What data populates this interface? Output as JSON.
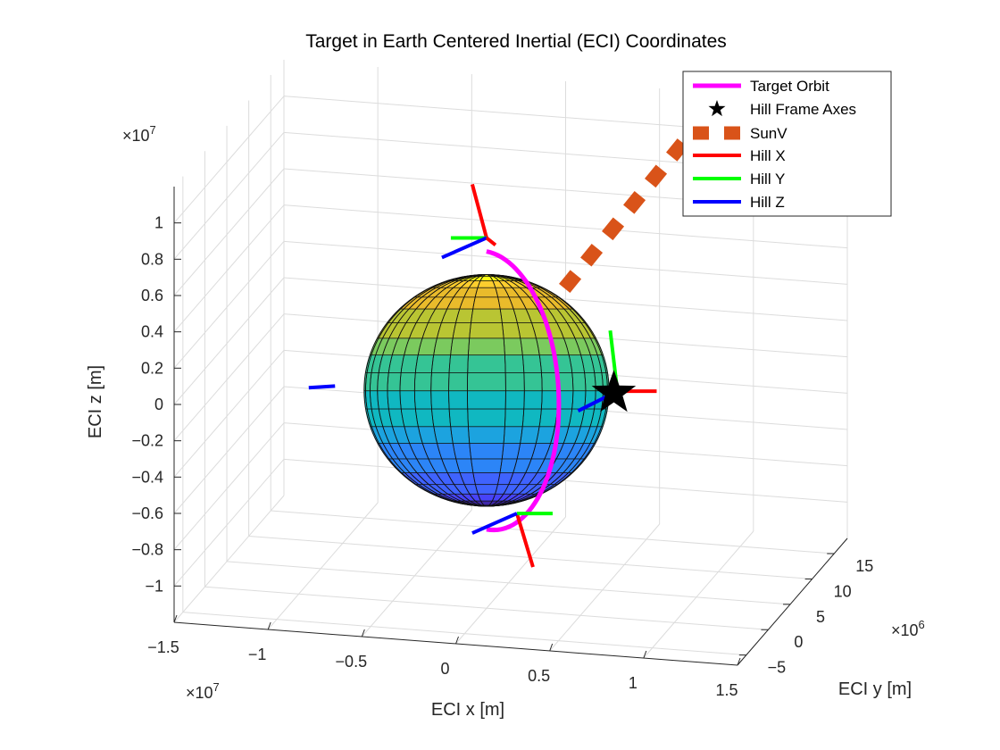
{
  "chart_data": {
    "type": "3d-line",
    "title": "Target in Earth Centered Inertial (ECI) Coordinates",
    "xlabel": "ECI x [m]",
    "ylabel": "ECI y [m]",
    "zlabel": "ECI z [m]",
    "x_exponent_label": "×10",
    "x_exponent_power": "7",
    "y_exponent_label": "×10",
    "y_exponent_power": "6",
    "z_exponent_label": "×10",
    "z_exponent_power": "7",
    "xlim": [
      -15000000,
      15000000
    ],
    "ylim": [
      -7000000,
      18000000
    ],
    "zlim": [
      -12000000,
      12000000
    ],
    "x_ticks": [
      -15000000,
      -10000000,
      -5000000,
      0,
      5000000,
      10000000,
      15000000
    ],
    "x_tick_labels": [
      "−1.5",
      "−1",
      "−0.5",
      "0",
      "0.5",
      "1",
      "1.5"
    ],
    "y_ticks": [
      -5000000,
      0,
      5000000,
      10000000,
      15000000
    ],
    "y_tick_labels": [
      "−5",
      "0",
      "5",
      "10",
      "15"
    ],
    "z_ticks": [
      -10000000,
      -8000000,
      -6000000,
      -4000000,
      -2000000,
      0,
      2000000,
      4000000,
      6000000,
      8000000,
      10000000
    ],
    "z_tick_labels": [
      "−1",
      "−0.8",
      "−0.6",
      "−0.4",
      "−0.2",
      "0",
      "0.2",
      "0.4",
      "0.6",
      "0.8",
      "1"
    ],
    "grid": true,
    "legend_position": "top-right",
    "earth_radius": 6378000,
    "series": [
      {
        "name": "Target Orbit",
        "color": "#ff00ff",
        "style": "solid"
      },
      {
        "name": "Hill Frame Axes",
        "color": "#000000",
        "style": "star"
      },
      {
        "name": "SunV",
        "color": "#d95319",
        "style": "dashed"
      },
      {
        "name": "Hill X",
        "color": "#ff0000",
        "style": "solid"
      },
      {
        "name": "Hill Y",
        "color": "#00ff00",
        "style": "solid"
      },
      {
        "name": "Hill Z",
        "color": "#0000ff",
        "style": "solid"
      }
    ]
  }
}
